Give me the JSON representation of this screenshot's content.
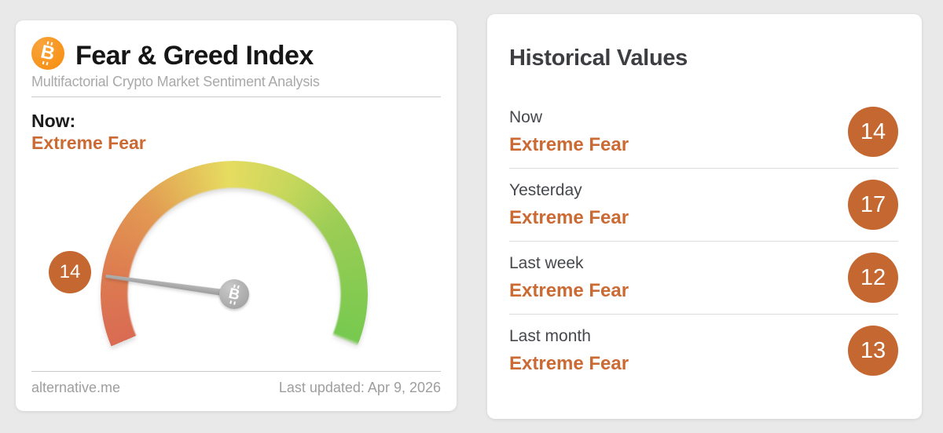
{
  "page": {
    "background": "#e9e9e9"
  },
  "fear_greed": {
    "title": "Fear & Greed Index",
    "subtitle": "Multifactorial Crypto Market Sentiment Analysis",
    "now_label": "Now:",
    "now_classification": "Extreme Fear",
    "gauge": {
      "type": "gauge",
      "value": 14,
      "min": 0,
      "max": 100,
      "classification": "Extreme Fear",
      "badge_value": "14",
      "color_stops": [
        "#d96b53",
        "#e29a52",
        "#e6dc60",
        "#9ccd55",
        "#77c94f"
      ],
      "needle_color": "#a8a8a8"
    },
    "footer": {
      "source": "alternative.me",
      "last_updated": "Last updated: Apr 9, 2026"
    }
  },
  "historical": {
    "title": "Historical Values",
    "rows": [
      {
        "label": "Now",
        "classification": "Extreme Fear",
        "value": "14"
      },
      {
        "label": "Yesterday",
        "classification": "Extreme Fear",
        "value": "17"
      },
      {
        "label": "Last week",
        "classification": "Extreme Fear",
        "value": "12"
      },
      {
        "label": "Last month",
        "classification": "Extreme Fear",
        "value": "13"
      }
    ]
  },
  "icons": {
    "header_icon": "bitcoin-icon",
    "pivot_icon": "bitcoin-icon",
    "bitcoin_symbol": "B"
  },
  "colors": {
    "badge_orange": "#c56731",
    "classification_orange": "#cb6a33",
    "bitcoin_orange": "#f7931a",
    "gauge_red": "#d96b53",
    "gauge_green": "#77c94f"
  }
}
